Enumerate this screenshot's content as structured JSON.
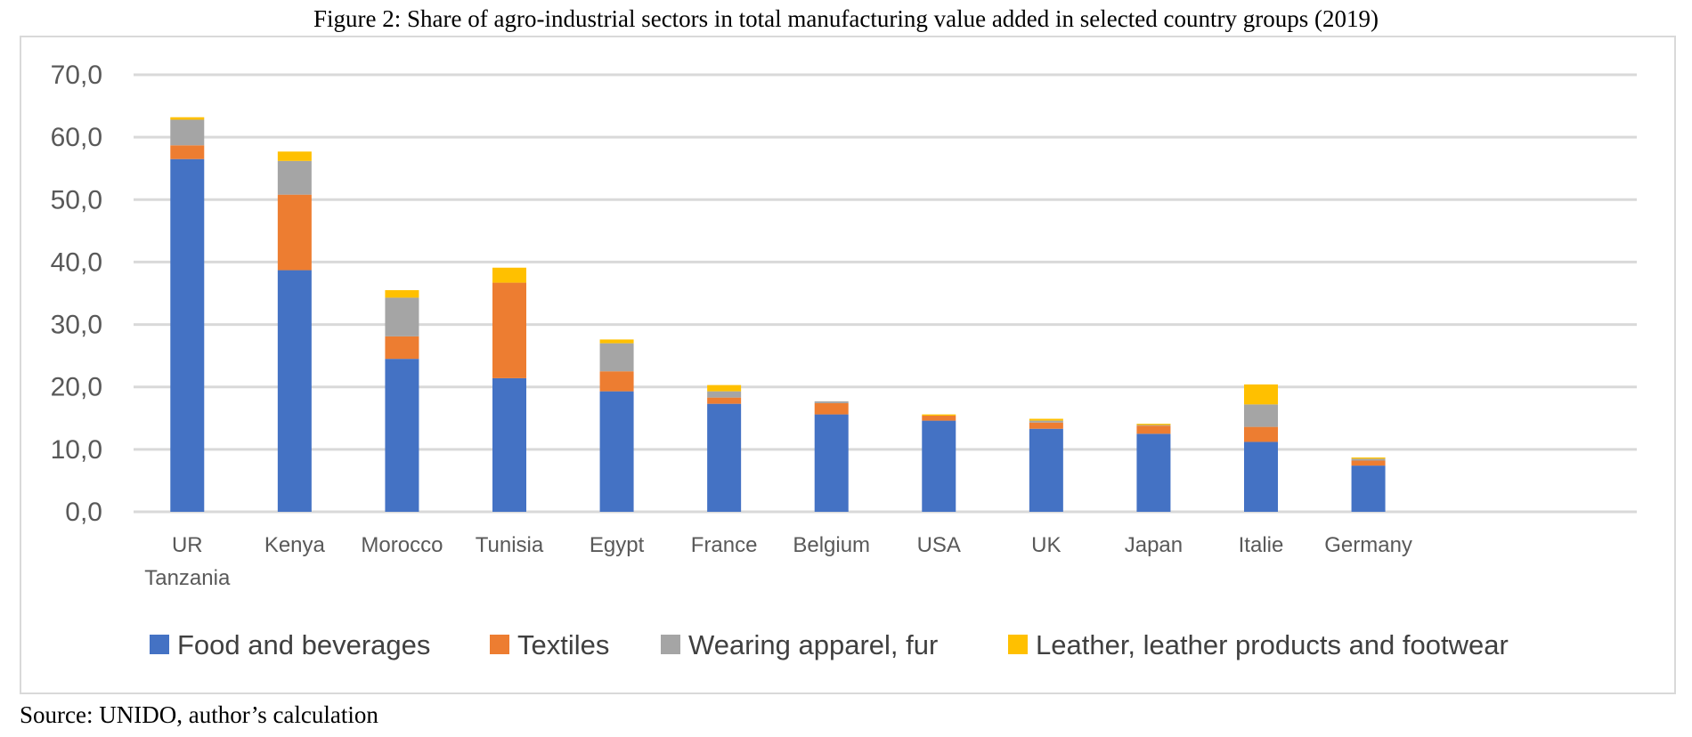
{
  "figure": {
    "title": "Figure 2: Share of agro-industrial sectors in total manufacturing value added in selected country groups (2019)",
    "source": "Source: UNIDO, author’s calculation"
  },
  "chart_data": {
    "type": "bar",
    "stacked": true,
    "title": "Figure 2: Share of agro-industrial sectors in total manufacturing value added in selected country groups (2019)",
    "xlabel": "",
    "ylabel": "",
    "ylim": [
      0,
      70
    ],
    "yticks": [
      0,
      10,
      20,
      30,
      40,
      50,
      60,
      70
    ],
    "ytick_labels": [
      "0,0",
      "10,0",
      "20,0",
      "30,0",
      "40,0",
      "50,0",
      "60,0",
      "70,0"
    ],
    "grid": "horizontal",
    "legend_position": "bottom",
    "categories": [
      [
        "UR",
        "Tanzania"
      ],
      [
        "Kenya"
      ],
      [
        "Morocco"
      ],
      [
        "Tunisia"
      ],
      [
        "Egypt"
      ],
      [
        "France"
      ],
      [
        "Belgium"
      ],
      [
        "USA"
      ],
      [
        "UK"
      ],
      [
        "Japan"
      ],
      [
        "Italie"
      ],
      [
        "Germany"
      ]
    ],
    "empty_slots_after": 2,
    "series": [
      {
        "name": "Food and beverages",
        "color": "#4472c4",
        "values": [
          56.5,
          38.7,
          24.5,
          21.4,
          19.3,
          17.3,
          15.6,
          14.6,
          13.3,
          12.5,
          11.2,
          7.4
        ]
      },
      {
        "name": "Textiles",
        "color": "#ed7d31",
        "values": [
          2.2,
          12.1,
          3.6,
          15.3,
          3.2,
          1.0,
          1.8,
          0.8,
          1.0,
          1.3,
          2.4,
          0.8
        ]
      },
      {
        "name": "Wearing apparel, fur",
        "color": "#a5a5a5",
        "values": [
          4.1,
          5.4,
          6.2,
          0.0,
          4.5,
          1.0,
          0.3,
          0.0,
          0.3,
          0.1,
          3.6,
          0.3
        ]
      },
      {
        "name": "Leather, leather products and footwear",
        "color": "#ffc000",
        "values": [
          0.4,
          1.5,
          1.2,
          2.4,
          0.6,
          1.0,
          0.0,
          0.2,
          0.3,
          0.2,
          3.2,
          0.2
        ]
      }
    ]
  }
}
